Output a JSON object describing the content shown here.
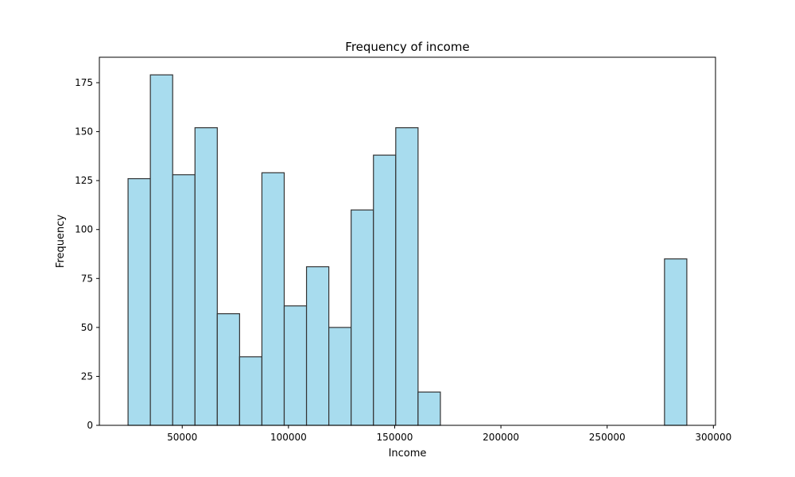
{
  "chart_data": {
    "type": "bar",
    "title": "Frequency of income",
    "xlabel": "Income",
    "ylabel": "Frequency",
    "xlim": [
      11000,
      301000
    ],
    "ylim": [
      0,
      188
    ],
    "xticks": [
      50000,
      100000,
      150000,
      200000,
      250000,
      300000
    ],
    "yticks": [
      0,
      25,
      50,
      75,
      100,
      125,
      150,
      175
    ],
    "bar_color": "#a8dcee",
    "edge_color": "#333333",
    "bins": [
      {
        "x0": 24500,
        "x1": 35000,
        "count": 126
      },
      {
        "x0": 35000,
        "x1": 45500,
        "count": 179
      },
      {
        "x0": 45500,
        "x1": 56000,
        "count": 128
      },
      {
        "x0": 56000,
        "x1": 66500,
        "count": 152
      },
      {
        "x0": 66500,
        "x1": 77000,
        "count": 57
      },
      {
        "x0": 77000,
        "x1": 87500,
        "count": 35
      },
      {
        "x0": 87500,
        "x1": 98000,
        "count": 129
      },
      {
        "x0": 98000,
        "x1": 108500,
        "count": 61
      },
      {
        "x0": 108500,
        "x1": 119000,
        "count": 81
      },
      {
        "x0": 119000,
        "x1": 129500,
        "count": 50
      },
      {
        "x0": 129500,
        "x1": 140000,
        "count": 110
      },
      {
        "x0": 140000,
        "x1": 150500,
        "count": 138
      },
      {
        "x0": 150500,
        "x1": 161000,
        "count": 152
      },
      {
        "x0": 161000,
        "x1": 171500,
        "count": 17
      },
      {
        "x0": 277000,
        "x1": 287500,
        "count": 85
      }
    ]
  }
}
